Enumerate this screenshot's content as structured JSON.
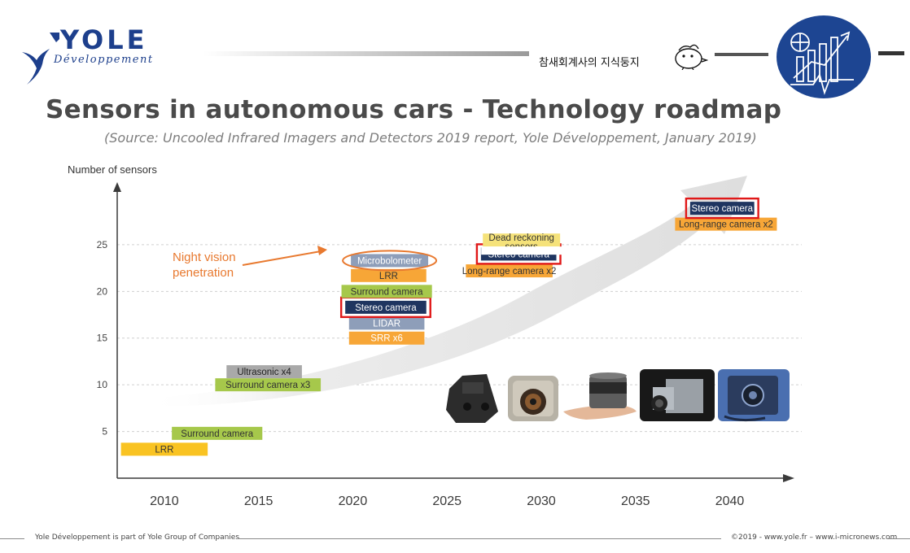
{
  "header": {
    "logo_name": "YOLE",
    "logo_subtitle": "Développement",
    "tagline": "참새회계사의 지식둥지",
    "brand_color": "#1d3f8c"
  },
  "title": "Sensors in autonomous cars - Technology roadmap",
  "subtitle": "(Source: Uncooled Infrared Imagers and Detectors 2019 report, Yole Développement, January 2019)",
  "chart_data": {
    "type": "roadmap",
    "ylabel": "Number of sensors",
    "xlabel": "",
    "xlim": [
      2007.5,
      2043
    ],
    "ylim": [
      0,
      31
    ],
    "x_ticks": [
      2010,
      2015,
      2020,
      2025,
      2030,
      2035,
      2040
    ],
    "y_ticks": [
      5,
      10,
      15,
      20,
      25
    ],
    "grid": "horizontal-dashed",
    "trend_arrow": {
      "color": "#e6e6e6",
      "direction": "up-right"
    },
    "annotation": {
      "text_lines": [
        "Night vision",
        "penetration"
      ],
      "target": "Microbolometer",
      "color": "#e8792f"
    },
    "colors": {
      "lrr": "#f9c322",
      "surround": "#a6c84b",
      "grey": "#a9a9a9",
      "blue_grey": "#8e9eb9",
      "orange": "#f7a637",
      "navy": "#1f3560",
      "dead_reckoning": "#f5e27a",
      "highlight": "#e01818"
    },
    "items": [
      {
        "label": "LRR",
        "x_start": 2007.7,
        "x_end": 2012.3,
        "y": 3.1,
        "color": "#f9c322",
        "text_color": "#333333"
      },
      {
        "label": "Surround camera",
        "x_start": 2010.4,
        "x_end": 2015.2,
        "y": 4.8,
        "color": "#a6c84b",
        "text_color": "#333333"
      },
      {
        "label": "Surround camera x3",
        "x_start": 2012.7,
        "x_end": 2018.3,
        "y": 10.0,
        "color": "#a6c84b",
        "text_color": "#333333"
      },
      {
        "label": "Ultrasonic x4",
        "x_start": 2013.3,
        "x_end": 2017.3,
        "y": 11.4,
        "color": "#a9a9a9",
        "text_color": "#222222"
      },
      {
        "label": "SRR x6",
        "x_start": 2019.8,
        "x_end": 2023.8,
        "y": 15.0,
        "color": "#f7a637",
        "text_color": "#ffffff"
      },
      {
        "label": "LIDAR",
        "x_start": 2019.8,
        "x_end": 2023.8,
        "y": 16.6,
        "color": "#8e9eb9",
        "text_color": "#ffffff"
      },
      {
        "label": "Stereo camera",
        "x_start": 2019.6,
        "x_end": 2023.9,
        "y": 18.3,
        "color": "#1f3560",
        "text_color": "#ffffff",
        "highlight": true
      },
      {
        "label": "Surround camera",
        "x_start": 2019.4,
        "x_end": 2024.2,
        "y": 20.0,
        "color": "#a6c84b",
        "text_color": "#333333"
      },
      {
        "label": "LRR",
        "x_start": 2019.9,
        "x_end": 2023.9,
        "y": 21.7,
        "color": "#f7a637",
        "text_color": "#333333"
      },
      {
        "label": "Microbolometer",
        "x_start": 2019.9,
        "x_end": 2024.0,
        "y": 23.3,
        "color": "#8e9eb9",
        "text_color": "#ffffff",
        "circled": true
      },
      {
        "label": "Long-range camera x2",
        "x_start": 2026.0,
        "x_end": 2030.6,
        "y": 22.2,
        "color": "#f7a637",
        "text_color": "#333333"
      },
      {
        "label": "Stereo camera",
        "x_start": 2026.8,
        "x_end": 2030.8,
        "y": 24.0,
        "color": "#1f3560",
        "text_color": "#ffffff",
        "highlight": true
      },
      {
        "label": "Dead reckoning sensors",
        "x_start": 2026.9,
        "x_end": 2031.0,
        "y": 25.5,
        "color": "#f5e27a",
        "text_color": "#333333",
        "clipped": true
      },
      {
        "label": "Long-range camera x2",
        "x_start": 2037.1,
        "x_end": 2042.5,
        "y": 27.2,
        "color": "#f7a637",
        "text_color": "#333333"
      },
      {
        "label": "Stereo camera",
        "x_start": 2037.9,
        "x_end": 2041.3,
        "y": 28.9,
        "color": "#1f3560",
        "text_color": "#ffffff",
        "highlight": true
      }
    ],
    "photos": [
      "stereo-camera-module",
      "camera-lens-module",
      "lidar-sensor-on-hand",
      "thermal-camera-module",
      "radar-sensor-module"
    ]
  },
  "footer": {
    "left": "Yole Développement is part of Yole Group of Companies",
    "right": "©2019 - www.yole.fr – www.i-micronews.com"
  }
}
